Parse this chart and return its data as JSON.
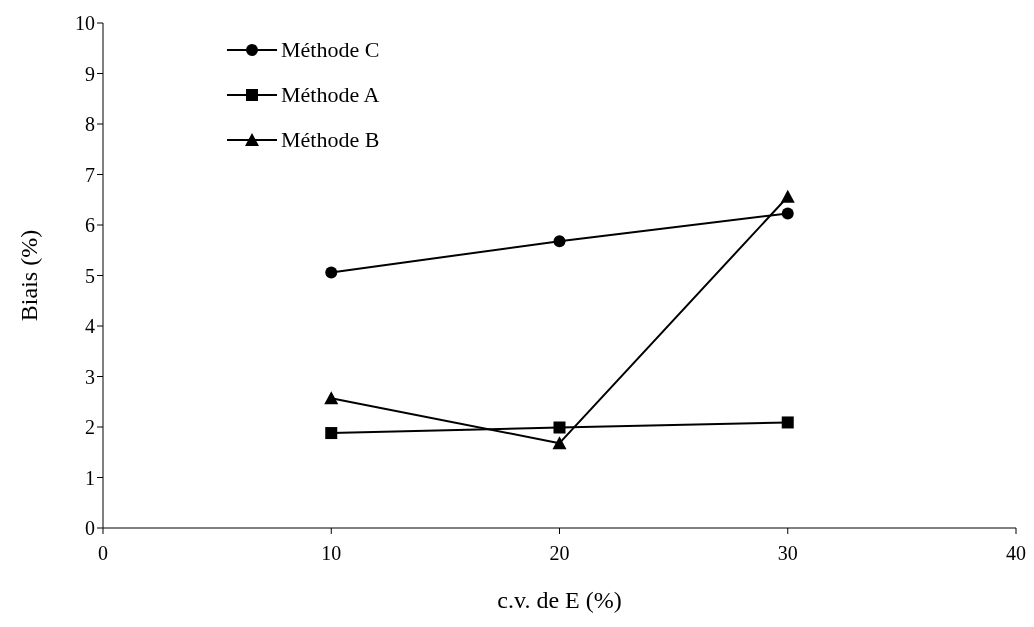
{
  "chart_data": {
    "type": "line",
    "xlabel": "c.v. de E (%)",
    "ylabel": "Biais (%)",
    "x": [
      10,
      20,
      30
    ],
    "xlim": [
      0,
      40
    ],
    "xticks": [
      0,
      10,
      20,
      30,
      40
    ],
    "ylim": [
      0,
      10
    ],
    "yticks": [
      0,
      1,
      2,
      3,
      4,
      5,
      6,
      7,
      8,
      9,
      10
    ],
    "grid": false,
    "legend": "top left",
    "series": [
      {
        "name": "Méthode C",
        "color": "#000000",
        "marker": "circle",
        "values": [
          5.06,
          5.68,
          6.23
        ]
      },
      {
        "name": "Méthode A",
        "color": "#000000",
        "marker": "square",
        "values": [
          1.88,
          1.99,
          2.09
        ]
      },
      {
        "name": "Méthode B",
        "color": "#000000",
        "marker": "triangle",
        "values": [
          2.57,
          1.68,
          6.56
        ]
      }
    ]
  }
}
